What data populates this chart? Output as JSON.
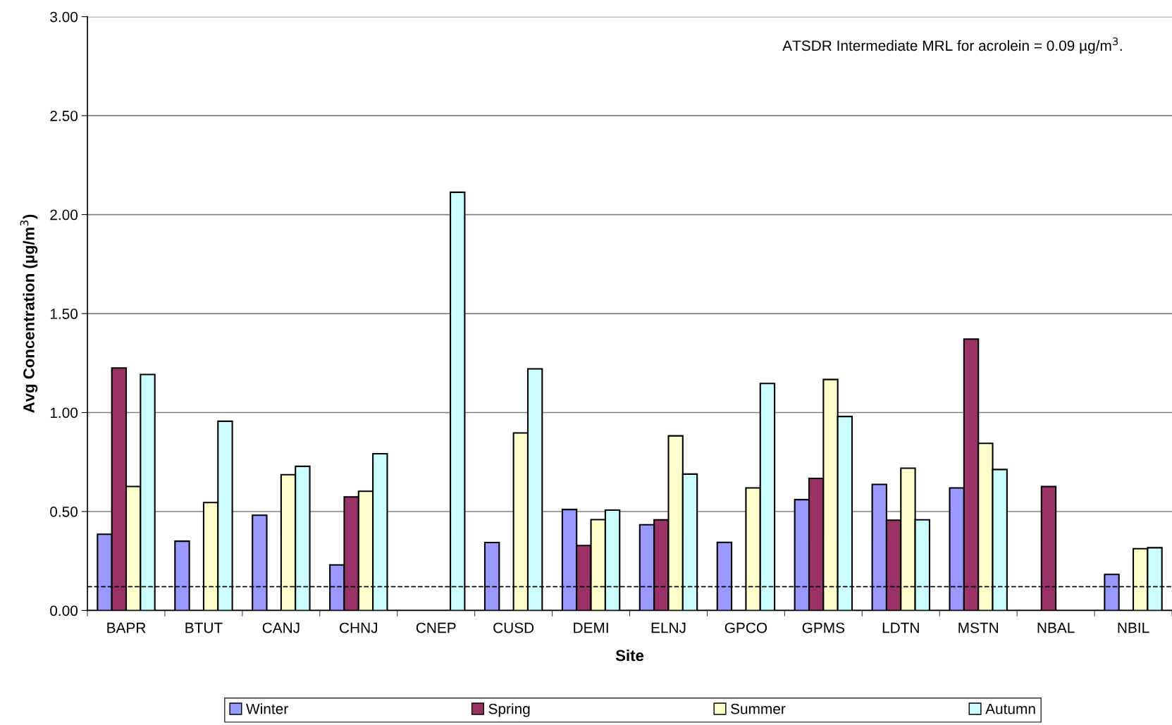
{
  "chart_data": {
    "type": "bar",
    "xlabel": "Site",
    "ylabel": "Avg Concentration (µg/m$^{3}$)",
    "categories": [
      "BAPR",
      "BTUT",
      "CANJ",
      "CHNJ",
      "CNEP",
      "CUSD",
      "DEMI",
      "ELNJ",
      "GPCO",
      "GPMS",
      "LDTN",
      "MSTN",
      "NBAL",
      "NBIL"
    ],
    "series": [
      {
        "name": "Winter",
        "color": "#9999ff",
        "values": [
          0.385,
          0.35,
          0.481,
          0.23,
          null,
          0.343,
          0.51,
          0.433,
          0.344,
          0.56,
          0.637,
          0.619,
          null,
          0.182
        ]
      },
      {
        "name": "Spring",
        "color": "#993366",
        "values": [
          1.225,
          null,
          null,
          0.574,
          null,
          null,
          0.328,
          0.458,
          null,
          0.667,
          0.456,
          1.371,
          0.626,
          null
        ]
      },
      {
        "name": "Summer",
        "color": "#ffffcc",
        "values": [
          0.626,
          0.545,
          0.686,
          0.602,
          null,
          0.897,
          0.459,
          0.882,
          0.619,
          1.167,
          0.719,
          0.844,
          null,
          0.312
        ]
      },
      {
        "name": "Autumn",
        "color": "#ccffff",
        "values": [
          1.192,
          0.956,
          0.728,
          0.792,
          2.113,
          1.221,
          0.507,
          0.689,
          1.147,
          0.98,
          0.458,
          0.712,
          null,
          0.317
        ]
      }
    ],
    "ylim": [
      0,
      3
    ],
    "yticks": [
      {
        "value": 0,
        "label": "0.00"
      },
      {
        "value": 0.5,
        "label": "0.50"
      },
      {
        "value": 1,
        "label": "1.00"
      },
      {
        "value": 1.5,
        "label": "1.50"
      },
      {
        "value": 2,
        "label": "2.00"
      },
      {
        "value": 2.5,
        "label": "2.50"
      },
      {
        "value": 3,
        "label": "3.00"
      }
    ],
    "grid": "y",
    "legend": "bottom",
    "ref_lines": [
      {
        "axis": "y",
        "value": 0.12,
        "color": "#000000",
        "line_style": "dashed"
      }
    ],
    "annotations": [
      "ATSDR Intermediate MRL for acrolein = 0.09 µg/m$^{3}$."
    ]
  }
}
